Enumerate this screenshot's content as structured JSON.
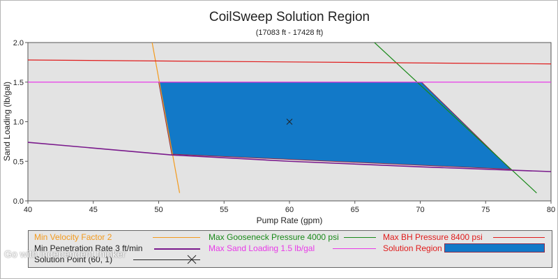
{
  "chart_data": {
    "type": "area",
    "title": "CoilSweep Solution Region",
    "subtitle": "(17083 ft - 17428 ft)",
    "xlabel": "Pump Rate (gpm)",
    "ylabel": "Sand Loading (lb/gal)",
    "xlim": [
      40,
      80
    ],
    "ylim": [
      0,
      2.0
    ],
    "x_ticks": [
      "40",
      "45",
      "50",
      "55",
      "60",
      "65",
      "70",
      "75",
      "80"
    ],
    "y_ticks": [
      "0.0",
      "0.5",
      "1.0",
      "1.5",
      "2.0"
    ],
    "grid": false,
    "background": "#e3e3e3",
    "series": [
      {
        "name": "Min Velocity Factor 2",
        "color": "#f39a1d",
        "points": [
          [
            49.5,
            2.0
          ],
          [
            51.6,
            0.1
          ]
        ]
      },
      {
        "name": "Max Gooseneck Pressure 4000 psi",
        "color": "#1a8a1a",
        "points": [
          [
            66.5,
            2.0
          ],
          [
            78.9,
            0.1
          ]
        ]
      },
      {
        "name": "Max BH Pressure 8400 psi",
        "color": "#e01b1b",
        "points": [
          [
            40,
            1.78
          ],
          [
            80,
            1.73
          ]
        ]
      },
      {
        "name": "Min Penetration Rate 3 ft/min",
        "color": "#7a1a8c",
        "points": [
          [
            40,
            0.74
          ],
          [
            51,
            0.58
          ],
          [
            60,
            0.5
          ],
          [
            70,
            0.43
          ],
          [
            80,
            0.37
          ]
        ]
      },
      {
        "name": "Max Sand Loading 1.5 lb/gal",
        "color": "#e83ae8",
        "points": [
          [
            40,
            1.5
          ],
          [
            80,
            1.5
          ]
        ]
      }
    ],
    "solution_region": {
      "name": "Solution Region",
      "fill": "#1279c8",
      "outline": "#8a2a4a",
      "polygon": [
        [
          50.0,
          1.5
        ],
        [
          70.1,
          1.5
        ],
        [
          76.9,
          0.4
        ],
        [
          51.0,
          0.59
        ]
      ]
    },
    "solution_point": {
      "name": "Solution Point (60, 1)",
      "x": 60,
      "y": 1
    }
  },
  "legend": {
    "items": [
      {
        "label": "Min Velocity Factor 2",
        "color": "#f39a1d",
        "kind": "line"
      },
      {
        "label": "Max Gooseneck Pressure 4000 psi",
        "color": "#1a8a1a",
        "kind": "line"
      },
      {
        "label": "Max BH Pressure 8400 psi",
        "color": "#e01b1b",
        "kind": "line"
      },
      {
        "label": "Min Penetration Rate 3 ft/min",
        "color": "#7a1a8c",
        "kind": "line"
      },
      {
        "label": "Max Sand Loading 1.5 lb/gal",
        "color": "#e83ae8",
        "kind": "line"
      },
      {
        "label": "Solution Region",
        "color": "#1279c8",
        "kind": "box"
      },
      {
        "label": "Solution Point (60, 1)",
        "color": "#222222",
        "kind": "cross"
      }
    ]
  },
  "watermark": {
    "text": "Go with independent thinker"
  }
}
